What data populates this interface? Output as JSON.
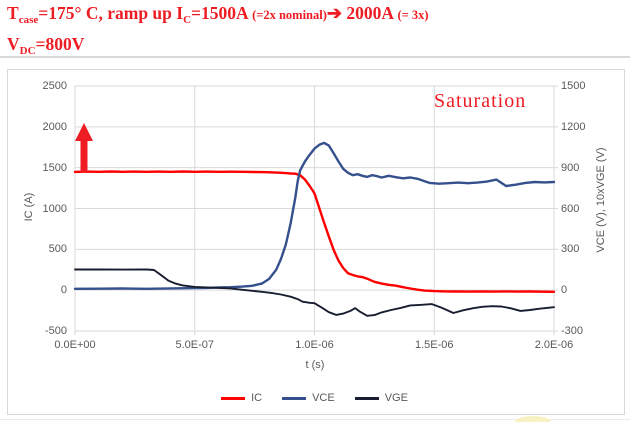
{
  "title": {
    "line1_segments": [
      {
        "t": "T"
      },
      {
        "t": "case",
        "style": "sub"
      },
      {
        "t": "=175° C, ramp up I"
      },
      {
        "t": "C",
        "style": "sub"
      },
      {
        "t": "=1500A "
      },
      {
        "t": "(=2x nominal)",
        "style": "small"
      },
      {
        "t": "➔",
        "style": "arrow"
      },
      {
        "t": " 2000A ",
        "style": ""
      },
      {
        "t": "(= 3x)",
        "style": "small"
      }
    ],
    "line2_segments": [
      {
        "t": "V"
      },
      {
        "t": "DC",
        "style": "sub"
      },
      {
        "t": "=800V"
      }
    ]
  },
  "chart": {
    "x_axis": {
      "title": "t (s)",
      "ticks": [
        "0.0E+00",
        "5.0E-07",
        "1.0E-06",
        "1.5E-06",
        "2.0E-06"
      ]
    },
    "left_axis": {
      "title": "IC (A)",
      "ticks": [
        "2500",
        "2000",
        "1500",
        "1000",
        "500",
        "0",
        "-500"
      ]
    },
    "right_axis": {
      "title": "VCE (V), 10xVGE (V)",
      "ticks": [
        "1500",
        "1200",
        "900",
        "600",
        "300",
        "0",
        "-300"
      ]
    }
  },
  "chart_data": {
    "type": "line",
    "title": "",
    "xlabel": "t (s)",
    "x_unit_displayed": "s",
    "x_unit_data": "µs",
    "x_range_us": [
      0,
      2
    ],
    "left_axis": {
      "label": "IC (A)",
      "range": [
        -500,
        2500
      ],
      "tick_step": 500
    },
    "right_axis": {
      "label": "VCE (V), 10xVGE (V)",
      "range": [
        -300,
        1500
      ],
      "tick_step": 300
    },
    "grid": true,
    "legend_position": "bottom",
    "annotations": [
      "Saturation"
    ],
    "arrow_annotation": {
      "shape": "up-arrow",
      "color": "#ee1c23",
      "meaning": "current ramped up"
    },
    "series": [
      {
        "name": "IC",
        "axis": "left",
        "color": "#fe0000",
        "x": [
          0,
          0.05,
          0.1,
          0.15,
          0.2,
          0.25,
          0.3,
          0.35,
          0.4,
          0.45,
          0.5,
          0.55,
          0.6,
          0.65,
          0.7,
          0.75,
          0.8,
          0.84,
          0.88,
          0.9,
          0.92,
          0.94,
          0.96,
          0.98,
          1.0,
          1.02,
          1.04,
          1.06,
          1.08,
          1.1,
          1.12,
          1.14,
          1.16,
          1.18,
          1.2,
          1.22,
          1.25,
          1.28,
          1.31,
          1.34,
          1.37,
          1.4,
          1.43,
          1.46,
          1.5,
          1.55,
          1.6,
          1.65,
          1.7,
          1.75,
          1.8,
          1.85,
          1.9,
          1.95,
          2.0
        ],
        "values": [
          1448,
          1452,
          1449,
          1453,
          1450,
          1452,
          1449,
          1452,
          1450,
          1453,
          1450,
          1452,
          1450,
          1451,
          1449,
          1447,
          1444,
          1440,
          1433,
          1429,
          1426,
          1408,
          1355,
          1275,
          1185,
          1005,
          825,
          655,
          492,
          362,
          272,
          207,
          186,
          168,
          160,
          140,
          102,
          80,
          66,
          55,
          36,
          20,
          6,
          -5,
          -12,
          -15,
          -16,
          -18,
          -15,
          -17,
          -15,
          -18,
          -16,
          -19,
          -20
        ]
      },
      {
        "name": "VCE",
        "axis": "right",
        "color": "#35508c",
        "x": [
          0,
          0.1,
          0.2,
          0.3,
          0.4,
          0.5,
          0.55,
          0.6,
          0.65,
          0.7,
          0.74,
          0.78,
          0.81,
          0.84,
          0.86,
          0.88,
          0.9,
          0.92,
          0.93,
          0.94,
          0.96,
          0.98,
          1.0,
          1.02,
          1.04,
          1.06,
          1.08,
          1.1,
          1.12,
          1.14,
          1.16,
          1.18,
          1.2,
          1.22,
          1.24,
          1.26,
          1.28,
          1.31,
          1.34,
          1.37,
          1.4,
          1.43,
          1.46,
          1.48,
          1.52,
          1.56,
          1.6,
          1.64,
          1.68,
          1.72,
          1.76,
          1.8,
          1.84,
          1.88,
          1.92,
          1.96,
          2.0
        ],
        "values": [
          10,
          11,
          12,
          10,
          13,
          15,
          17,
          20,
          22,
          26,
          32,
          48,
          82,
          150,
          230,
          335,
          490,
          680,
          800,
          880,
          945,
          995,
          1040,
          1068,
          1082,
          1062,
          1005,
          945,
          892,
          862,
          845,
          852,
          840,
          832,
          845,
          838,
          828,
          840,
          830,
          822,
          828,
          818,
          800,
          788,
          782,
          786,
          790,
          786,
          790,
          798,
          812,
          765,
          775,
          788,
          795,
          792,
          795
        ]
      },
      {
        "name": "VGE",
        "axis": "right",
        "note": "plotted as 10xVGE (V)",
        "color": "#181d2f",
        "x": [
          0,
          0.1,
          0.2,
          0.3,
          0.33,
          0.36,
          0.39,
          0.42,
          0.45,
          0.5,
          0.55,
          0.6,
          0.65,
          0.7,
          0.74,
          0.78,
          0.82,
          0.86,
          0.9,
          0.93,
          0.95,
          0.98,
          1.0,
          1.03,
          1.06,
          1.09,
          1.12,
          1.15,
          1.17,
          1.19,
          1.22,
          1.25,
          1.28,
          1.32,
          1.36,
          1.4,
          1.44,
          1.49,
          1.53,
          1.58,
          1.62,
          1.66,
          1.7,
          1.74,
          1.78,
          1.82,
          1.86,
          1.9,
          1.94,
          2.0
        ],
        "values": [
          152,
          152,
          151,
          152,
          148,
          110,
          70,
          48,
          35,
          24,
          20,
          17,
          13,
          3,
          -5,
          -12,
          -20,
          -32,
          -48,
          -66,
          -85,
          -93,
          -96,
          -128,
          -162,
          -182,
          -172,
          -152,
          -132,
          -158,
          -188,
          -183,
          -163,
          -146,
          -130,
          -112,
          -108,
          -102,
          -128,
          -168,
          -148,
          -133,
          -122,
          -118,
          -120,
          -133,
          -152,
          -146,
          -136,
          -125
        ]
      }
    ]
  },
  "colors": {
    "title_red": "#ee1c23",
    "grid": "#d9d9d9",
    "axis_text": "#595959",
    "chart_border": "#d9d9d9"
  }
}
